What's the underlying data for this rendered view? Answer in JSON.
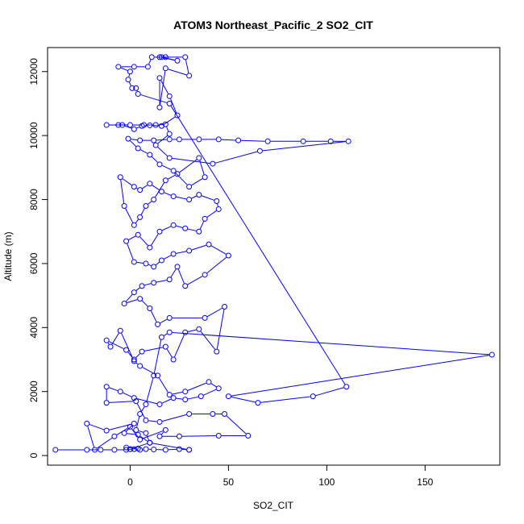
{
  "chart_data": {
    "type": "line",
    "title": "ATOM3 Northeast_Pacific_2 SO2_CIT",
    "xlabel": "SO2_CIT",
    "ylabel": "Altitude (m)",
    "xlim": [
      -42,
      188
    ],
    "ylim": [
      -300,
      12750
    ],
    "xticks": [
      0,
      50,
      100,
      150
    ],
    "yticks": [
      0,
      2000,
      4000,
      6000,
      8000,
      10000,
      12000
    ],
    "grid": false,
    "colors": {
      "series": "#0000ff",
      "frame": "#000000"
    },
    "series": [
      {
        "name": "",
        "marker": "open-circle",
        "points": [
          [
            -38,
            180
          ],
          [
            -22,
            180
          ],
          [
            -15,
            180
          ],
          [
            -8,
            180
          ],
          [
            -2,
            180
          ],
          [
            2,
            200
          ],
          [
            5,
            180
          ],
          [
            8,
            200
          ],
          [
            12,
            190
          ],
          [
            18,
            180
          ],
          [
            25,
            200
          ],
          [
            30,
            180
          ],
          [
            30,
            180
          ],
          [
            10,
            400
          ],
          [
            4,
            650
          ],
          [
            -3,
            700
          ],
          [
            2,
            1000
          ],
          [
            -12,
            780
          ],
          [
            -22,
            1000
          ],
          [
            -18,
            180
          ],
          [
            -8,
            600
          ],
          [
            0,
            900
          ],
          [
            5,
            500
          ],
          [
            18,
            800
          ],
          [
            15,
            600
          ],
          [
            25,
            600
          ],
          [
            45,
            620
          ],
          [
            60,
            620
          ],
          [
            48,
            1300
          ],
          [
            42,
            1300
          ],
          [
            30,
            1300
          ],
          [
            15,
            1050
          ],
          [
            8,
            1100
          ],
          [
            3,
            1700
          ],
          [
            -12,
            1650
          ],
          [
            -12,
            2150
          ],
          [
            -5,
            2000
          ],
          [
            2,
            1800
          ],
          [
            15,
            1600
          ],
          [
            22,
            1800
          ],
          [
            28,
            1750
          ],
          [
            36,
            1850
          ],
          [
            45,
            2100
          ],
          [
            40,
            2300
          ],
          [
            28,
            2000
          ],
          [
            20,
            1900
          ],
          [
            14,
            2500
          ],
          [
            5,
            2800
          ],
          [
            2,
            2950
          ],
          [
            -5,
            3900
          ],
          [
            -10,
            3400
          ],
          [
            -12,
            3600
          ],
          [
            -2,
            3300
          ],
          [
            2,
            3000
          ],
          [
            6,
            3250
          ],
          [
            18,
            3400
          ],
          [
            22,
            3000
          ],
          [
            28,
            3850
          ],
          [
            35,
            3950
          ],
          [
            44,
            3250
          ],
          [
            48,
            4650
          ],
          [
            38,
            4300
          ],
          [
            20,
            4300
          ],
          [
            14,
            4100
          ],
          [
            10,
            4600
          ],
          [
            5,
            4900
          ],
          [
            -3,
            4750
          ],
          [
            2,
            5100
          ],
          [
            6,
            5300
          ],
          [
            12,
            5400
          ],
          [
            20,
            5500
          ],
          [
            24,
            5900
          ],
          [
            28,
            5300
          ],
          [
            38,
            5650
          ],
          [
            50,
            6250
          ],
          [
            40,
            6600
          ],
          [
            30,
            6400
          ],
          [
            22,
            6300
          ],
          [
            16,
            6100
          ],
          [
            12,
            5900
          ],
          [
            8,
            6000
          ],
          [
            2,
            6050
          ],
          [
            -2,
            6700
          ],
          [
            4,
            6900
          ],
          [
            10,
            6500
          ],
          [
            15,
            7000
          ],
          [
            22,
            7200
          ],
          [
            28,
            7100
          ],
          [
            35,
            7000
          ],
          [
            38,
            7400
          ],
          [
            45,
            7700
          ],
          [
            44,
            7950
          ],
          [
            35,
            8150
          ],
          [
            30,
            8000
          ],
          [
            22,
            8100
          ],
          [
            16,
            8250
          ],
          [
            10,
            8500
          ],
          [
            5,
            8300
          ],
          [
            2,
            8400
          ],
          [
            -5,
            8700
          ],
          [
            -3,
            7800
          ],
          [
            2,
            7200
          ],
          [
            5,
            7450
          ],
          [
            8,
            7800
          ],
          [
            12,
            8000
          ],
          [
            18,
            8600
          ],
          [
            24,
            8800
          ],
          [
            35,
            9300
          ],
          [
            38,
            8700
          ],
          [
            30,
            8400
          ],
          [
            22,
            8900
          ],
          [
            15,
            9100
          ],
          [
            10,
            9400
          ],
          [
            4,
            9600
          ],
          [
            -1,
            9900
          ],
          [
            5,
            9850
          ],
          [
            12,
            9850
          ],
          [
            20,
            9880
          ],
          [
            25,
            9880
          ],
          [
            35,
            9880
          ],
          [
            45,
            9880
          ],
          [
            55,
            9850
          ],
          [
            70,
            9820
          ],
          [
            88,
            9820
          ],
          [
            102,
            9820
          ],
          [
            111,
            9820
          ],
          [
            66,
            9520
          ],
          [
            42,
            9120
          ],
          [
            20,
            9300
          ],
          [
            13,
            9700
          ],
          [
            20,
            10050
          ],
          [
            18,
            10350
          ],
          [
            13,
            10330
          ],
          [
            7,
            10330
          ],
          [
            0,
            10330
          ],
          [
            -12,
            10330
          ],
          [
            -6,
            10330
          ],
          [
            -4,
            10330
          ],
          [
            2,
            10200
          ],
          [
            6,
            10300
          ],
          [
            10,
            10320
          ],
          [
            16,
            10300
          ],
          [
            24,
            10630
          ],
          [
            20,
            11230
          ],
          [
            15,
            11800
          ],
          [
            15,
            10880
          ],
          [
            18,
            12100
          ],
          [
            30,
            11870
          ],
          [
            28,
            12450
          ],
          [
            15,
            12450
          ],
          [
            24,
            12340
          ],
          [
            16,
            12450
          ],
          [
            18,
            12450
          ],
          [
            11,
            12450
          ],
          [
            9,
            12150
          ],
          [
            2,
            12150
          ],
          [
            -6,
            12150
          ],
          [
            0,
            12000
          ],
          [
            -1,
            11750
          ],
          [
            1,
            11480
          ],
          [
            3,
            11480
          ],
          [
            4,
            11300
          ],
          [
            20,
            11000
          ],
          [
            110,
            2150
          ],
          [
            93,
            1850
          ],
          [
            65,
            1650
          ],
          [
            50,
            1850
          ],
          [
            184,
            3150
          ],
          [
            20,
            3850
          ],
          [
            16,
            3700
          ],
          [
            12,
            2500
          ],
          [
            8,
            1600
          ],
          [
            5,
            1300
          ],
          [
            3,
            800
          ],
          [
            8,
            700
          ],
          [
            10,
            400
          ],
          [
            0,
            200
          ],
          [
            -2,
            250
          ],
          [
            4,
            220
          ],
          [
            0,
            200
          ]
        ]
      }
    ]
  }
}
